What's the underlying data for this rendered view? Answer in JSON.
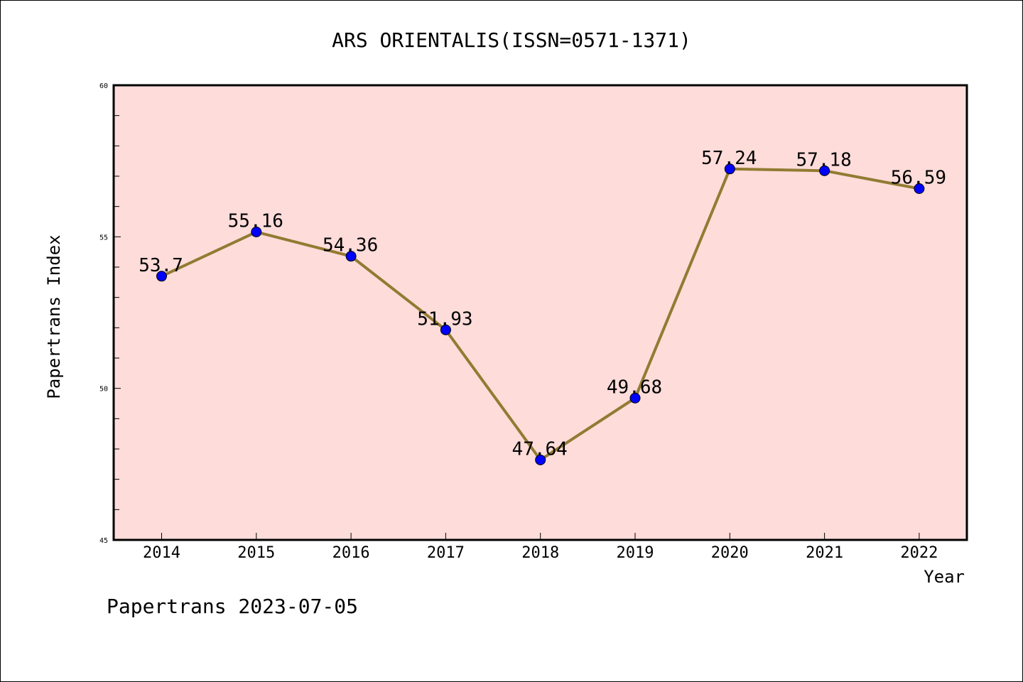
{
  "chart_data": {
    "type": "line",
    "title": "ARS ORIENTALIS(ISSN=0571-1371)",
    "xlabel": "Year",
    "ylabel": "Papertrans Index",
    "categories": [
      "2014",
      "2015",
      "2016",
      "2017",
      "2018",
      "2019",
      "2020",
      "2021",
      "2022"
    ],
    "series": [
      {
        "values": [
          53.7,
          55.16,
          54.36,
          51.93,
          47.64,
          49.68,
          57.24,
          57.18,
          56.59
        ],
        "labels": [
          "53.7",
          "55.16",
          "54.36",
          "51.93",
          "47.64",
          "49.68",
          "57.24",
          "57.18",
          "56.59"
        ]
      }
    ],
    "ylim": [
      45,
      60
    ],
    "yticks": [
      "45",
      "50",
      "55",
      "60"
    ],
    "grid": false,
    "colors": {
      "plot_background": "#FDDCDA",
      "line": "#927B32",
      "marker": "#0000FF"
    }
  },
  "footer": "Papertrans 2023-07-05"
}
